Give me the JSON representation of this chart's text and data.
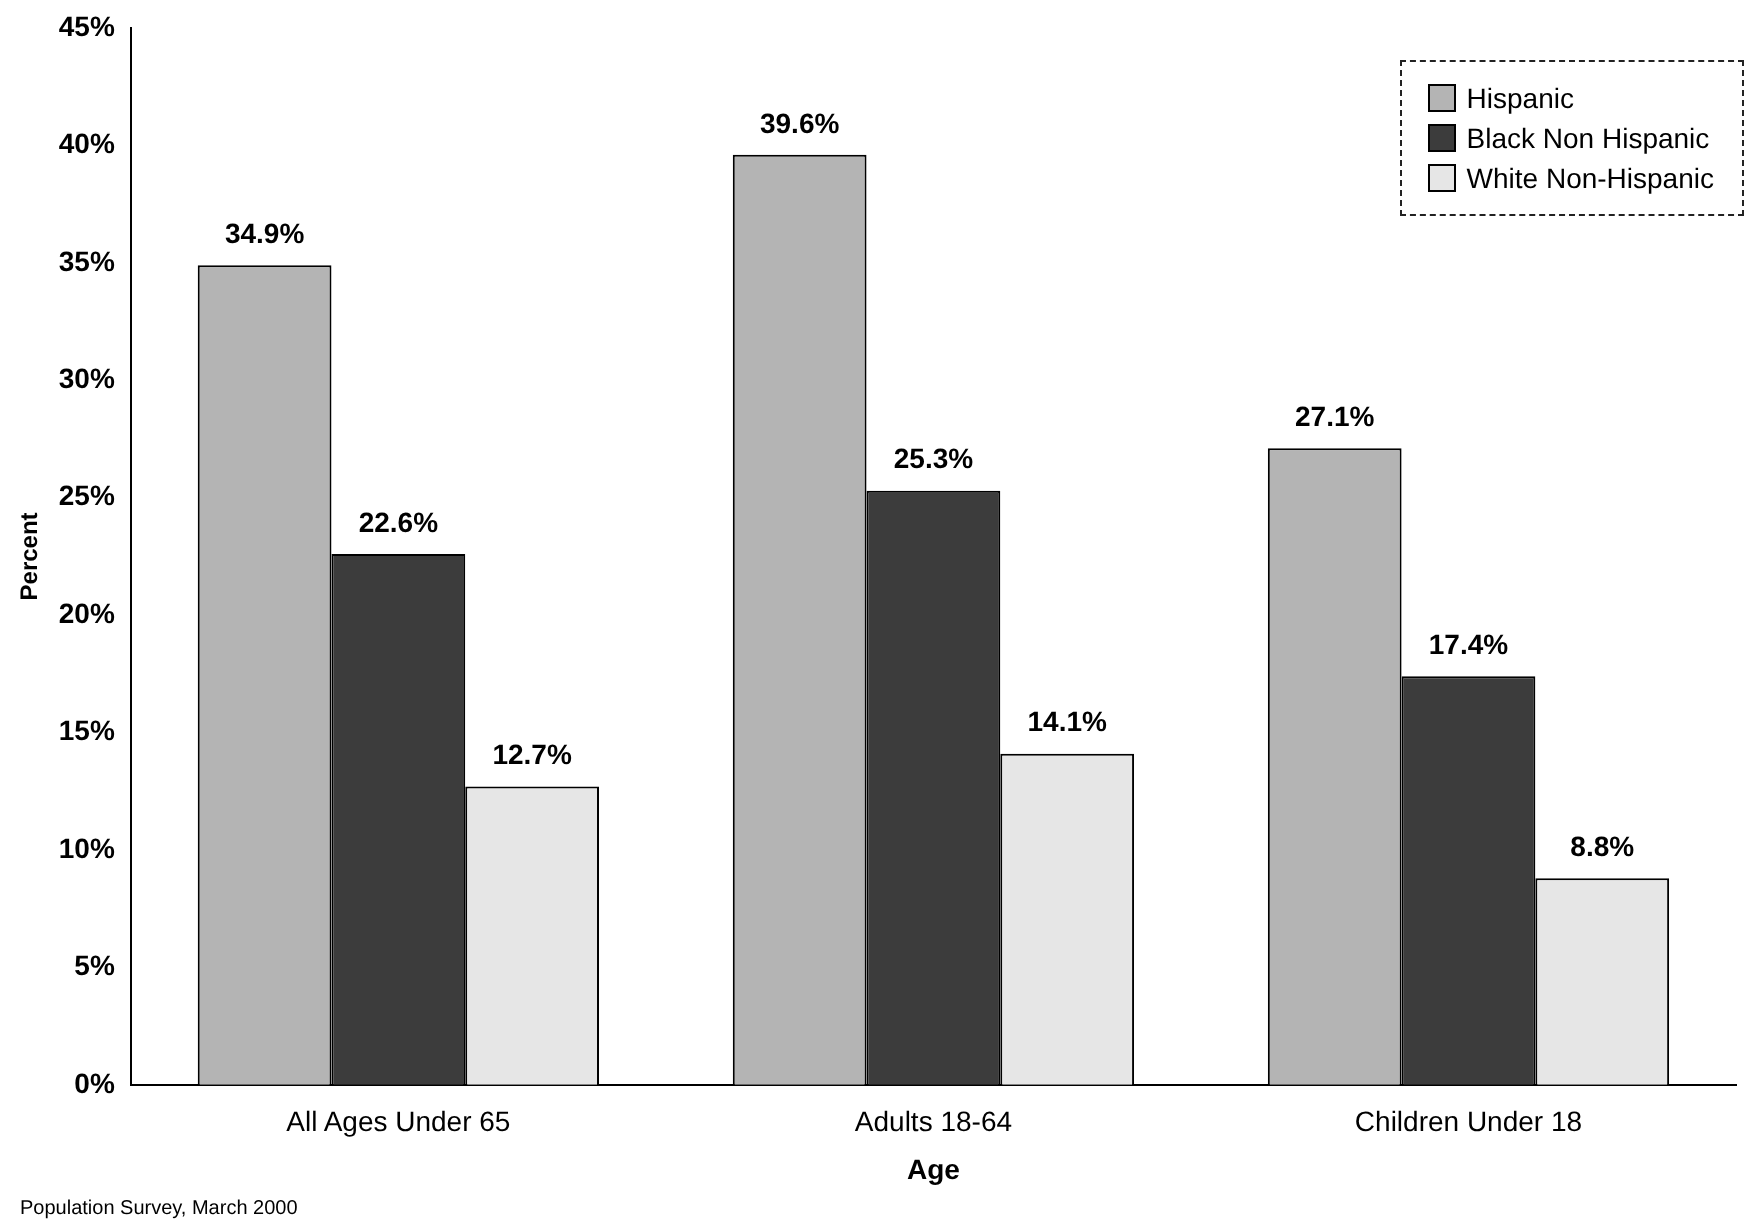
{
  "chart_data": {
    "type": "bar",
    "xlabel": "Age",
    "ylabel": "Percent",
    "categories": [
      "All Ages Under 65",
      "Adults 18-64",
      "Children Under 18"
    ],
    "series": [
      {
        "name": "Hispanic",
        "color": "#b4b4b4",
        "values": [
          34.9,
          39.6,
          27.1
        ]
      },
      {
        "name": "Black Non Hispanic",
        "color": "#3c3c3c",
        "values": [
          22.6,
          25.3,
          17.4
        ]
      },
      {
        "name": "White Non-Hispanic",
        "color": "#e6e6e6",
        "values": [
          12.7,
          14.1,
          8.8
        ]
      }
    ],
    "ylim": [
      0,
      45
    ],
    "yticks": [
      {
        "value": 0,
        "label": "0%"
      },
      {
        "value": 5,
        "label": "5%"
      },
      {
        "value": 10,
        "label": "10%"
      },
      {
        "value": 15,
        "label": "15%"
      },
      {
        "value": 20,
        "label": "20%"
      },
      {
        "value": 25,
        "label": "25%"
      },
      {
        "value": 30,
        "label": "30%"
      },
      {
        "value": 35,
        "label": "35%"
      },
      {
        "value": 40,
        "label": "40%"
      },
      {
        "value": 45,
        "label": "45%"
      }
    ],
    "value_labels": [
      [
        "34.9%",
        "39.6%",
        "27.1%"
      ],
      [
        "22.6%",
        "25.3%",
        "17.4%"
      ],
      [
        "12.7%",
        "14.1%",
        "8.8%"
      ]
    ],
    "grid": false,
    "legend": "top right",
    "annotations": [
      "Population Survey, March 2000"
    ]
  }
}
